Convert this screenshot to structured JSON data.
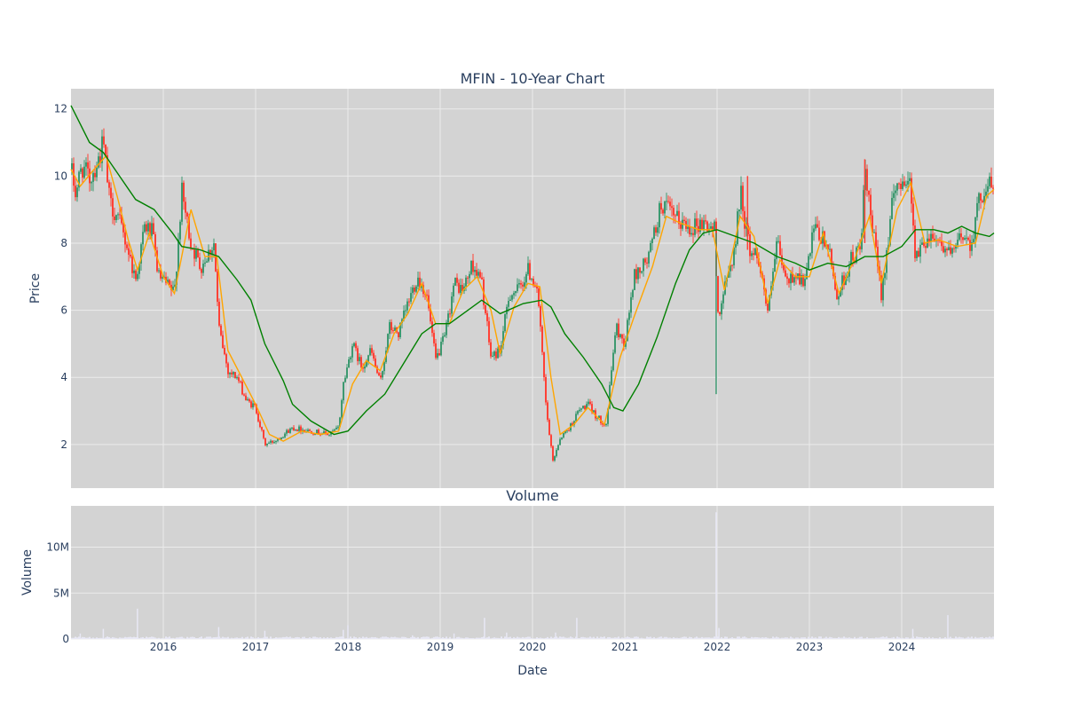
{
  "chart_data": [
    {
      "type": "candlestick",
      "title": "MFIN - 10-Year Chart",
      "ylabel": "Price",
      "ylim": [
        0.7,
        12.6
      ],
      "yticks": [
        2,
        4,
        6,
        8,
        10,
        12
      ],
      "xlim": [
        2015.0,
        2025.0
      ],
      "grid": true,
      "colors": {
        "increasing": "#3d9970",
        "decreasing": "#ff4136",
        "ma_short": "#ffa500",
        "ma_long": "#008000",
        "plot_bg": "#d3d3d3",
        "grid": "#ebebeb"
      },
      "price_path": [
        [
          2015.0,
          10.2
        ],
        [
          2015.05,
          9.5
        ],
        [
          2015.12,
          10.3
        ],
        [
          2015.2,
          9.9
        ],
        [
          2015.3,
          10.5
        ],
        [
          2015.35,
          11.0
        ],
        [
          2015.42,
          9.2
        ],
        [
          2015.5,
          8.8
        ],
        [
          2015.6,
          8.0
        ],
        [
          2015.7,
          6.9
        ],
        [
          2015.8,
          8.5
        ],
        [
          2015.88,
          8.3
        ],
        [
          2015.95,
          7.0
        ],
        [
          2016.05,
          6.7
        ],
        [
          2016.12,
          6.5
        ],
        [
          2016.2,
          9.5
        ],
        [
          2016.3,
          8.0
        ],
        [
          2016.4,
          7.3
        ],
        [
          2016.55,
          8.0
        ],
        [
          2016.6,
          5.5
        ],
        [
          2016.7,
          4.2
        ],
        [
          2016.8,
          4.0
        ],
        [
          2016.9,
          3.3
        ],
        [
          2017.0,
          3.1
        ],
        [
          2017.1,
          2.0
        ],
        [
          2017.2,
          2.1
        ],
        [
          2017.4,
          2.5
        ],
        [
          2017.6,
          2.4
        ],
        [
          2017.8,
          2.3
        ],
        [
          2017.9,
          2.5
        ],
        [
          2017.95,
          3.8
        ],
        [
          2018.05,
          5.0
        ],
        [
          2018.15,
          4.3
        ],
        [
          2018.25,
          4.8
        ],
        [
          2018.35,
          3.8
        ],
        [
          2018.45,
          5.5
        ],
        [
          2018.55,
          5.3
        ],
        [
          2018.65,
          6.2
        ],
        [
          2018.75,
          7.0
        ],
        [
          2018.85,
          6.5
        ],
        [
          2018.95,
          4.5
        ],
        [
          2019.05,
          5.2
        ],
        [
          2019.15,
          6.8
        ],
        [
          2019.25,
          6.6
        ],
        [
          2019.35,
          7.4
        ],
        [
          2019.45,
          6.8
        ],
        [
          2019.55,
          4.6
        ],
        [
          2019.65,
          4.8
        ],
        [
          2019.75,
          6.5
        ],
        [
          2019.85,
          6.6
        ],
        [
          2019.95,
          7.2
        ],
        [
          2020.05,
          6.7
        ],
        [
          2020.15,
          3.0
        ],
        [
          2020.22,
          1.5
        ],
        [
          2020.3,
          2.2
        ],
        [
          2020.4,
          2.5
        ],
        [
          2020.5,
          3.0
        ],
        [
          2020.6,
          3.2
        ],
        [
          2020.7,
          2.8
        ],
        [
          2020.8,
          2.6
        ],
        [
          2020.9,
          5.5
        ],
        [
          2021.0,
          5.0
        ],
        [
          2021.1,
          7.0
        ],
        [
          2021.25,
          7.5
        ],
        [
          2021.4,
          9.2
        ],
        [
          2021.55,
          8.7
        ],
        [
          2021.7,
          8.5
        ],
        [
          2021.85,
          8.6
        ],
        [
          2021.98,
          8.4
        ],
        [
          2022.0,
          5.8
        ],
        [
          2022.1,
          6.8
        ],
        [
          2022.2,
          8.0
        ],
        [
          2022.25,
          9.6
        ],
        [
          2022.35,
          7.8
        ],
        [
          2022.45,
          7.6
        ],
        [
          2022.55,
          5.9
        ],
        [
          2022.65,
          8.0
        ],
        [
          2022.75,
          6.8
        ],
        [
          2022.85,
          7.1
        ],
        [
          2022.95,
          6.8
        ],
        [
          2023.05,
          8.4
        ],
        [
          2023.2,
          7.9
        ],
        [
          2023.3,
          6.4
        ],
        [
          2023.45,
          7.5
        ],
        [
          2023.55,
          7.8
        ],
        [
          2023.6,
          10.0
        ],
        [
          2023.7,
          8.1
        ],
        [
          2023.78,
          6.5
        ],
        [
          2023.9,
          9.2
        ],
        [
          2024.0,
          10.0
        ],
        [
          2024.1,
          9.7
        ],
        [
          2024.15,
          7.5
        ],
        [
          2024.25,
          8.1
        ],
        [
          2024.35,
          8.3
        ],
        [
          2024.45,
          7.9
        ],
        [
          2024.55,
          7.6
        ],
        [
          2024.65,
          8.3
        ],
        [
          2024.75,
          8.0
        ],
        [
          2024.85,
          9.4
        ],
        [
          2024.95,
          9.8
        ],
        [
          2025.0,
          9.5
        ]
      ],
      "ma_short": [
        [
          2015.0,
          10.2
        ],
        [
          2015.1,
          9.7
        ],
        [
          2015.25,
          10.2
        ],
        [
          2015.38,
          10.6
        ],
        [
          2015.5,
          9.4
        ],
        [
          2015.62,
          8.1
        ],
        [
          2015.72,
          7.2
        ],
        [
          2015.85,
          8.3
        ],
        [
          2016.0,
          7.0
        ],
        [
          2016.12,
          6.5
        ],
        [
          2016.3,
          9.0
        ],
        [
          2016.45,
          7.6
        ],
        [
          2016.58,
          7.6
        ],
        [
          2016.7,
          4.8
        ],
        [
          2016.85,
          4.0
        ],
        [
          2017.0,
          3.2
        ],
        [
          2017.15,
          2.3
        ],
        [
          2017.3,
          2.1
        ],
        [
          2017.5,
          2.4
        ],
        [
          2017.7,
          2.3
        ],
        [
          2017.9,
          2.4
        ],
        [
          2018.05,
          3.8
        ],
        [
          2018.2,
          4.5
        ],
        [
          2018.35,
          4.2
        ],
        [
          2018.5,
          5.3
        ],
        [
          2018.65,
          5.9
        ],
        [
          2018.8,
          6.8
        ],
        [
          2018.95,
          5.6
        ],
        [
          2019.1,
          5.6
        ],
        [
          2019.25,
          6.6
        ],
        [
          2019.4,
          7.0
        ],
        [
          2019.55,
          6.0
        ],
        [
          2019.65,
          4.7
        ],
        [
          2019.8,
          6.1
        ],
        [
          2019.95,
          6.8
        ],
        [
          2020.08,
          6.7
        ],
        [
          2020.2,
          4.0
        ],
        [
          2020.3,
          2.3
        ],
        [
          2020.45,
          2.6
        ],
        [
          2020.6,
          3.1
        ],
        [
          2020.78,
          2.6
        ],
        [
          2020.95,
          4.6
        ],
        [
          2021.1,
          5.8
        ],
        [
          2021.3,
          7.3
        ],
        [
          2021.45,
          8.8
        ],
        [
          2021.6,
          8.6
        ],
        [
          2021.8,
          8.4
        ],
        [
          2021.95,
          8.4
        ],
        [
          2022.08,
          6.6
        ],
        [
          2022.25,
          8.8
        ],
        [
          2022.4,
          8.2
        ],
        [
          2022.55,
          6.2
        ],
        [
          2022.68,
          7.5
        ],
        [
          2022.85,
          7.0
        ],
        [
          2023.0,
          7.0
        ],
        [
          2023.15,
          8.3
        ],
        [
          2023.32,
          6.5
        ],
        [
          2023.5,
          7.6
        ],
        [
          2023.65,
          8.8
        ],
        [
          2023.78,
          6.8
        ],
        [
          2023.95,
          9.0
        ],
        [
          2024.1,
          9.8
        ],
        [
          2024.25,
          8.0
        ],
        [
          2024.4,
          8.1
        ],
        [
          2024.6,
          7.9
        ],
        [
          2024.8,
          8.0
        ],
        [
          2024.92,
          9.4
        ],
        [
          2025.0,
          9.6
        ]
      ],
      "ma_long": [
        [
          2015.0,
          12.1
        ],
        [
          2015.2,
          11.0
        ],
        [
          2015.35,
          10.7
        ],
        [
          2015.5,
          10.1
        ],
        [
          2015.7,
          9.3
        ],
        [
          2015.9,
          9.0
        ],
        [
          2016.1,
          8.3
        ],
        [
          2016.2,
          7.9
        ],
        [
          2016.4,
          7.8
        ],
        [
          2016.6,
          7.6
        ],
        [
          2016.8,
          6.9
        ],
        [
          2016.95,
          6.3
        ],
        [
          2017.1,
          5.0
        ],
        [
          2017.3,
          3.9
        ],
        [
          2017.4,
          3.2
        ],
        [
          2017.6,
          2.7
        ],
        [
          2017.85,
          2.3
        ],
        [
          2018.0,
          2.4
        ],
        [
          2018.2,
          3.0
        ],
        [
          2018.4,
          3.5
        ],
        [
          2018.6,
          4.4
        ],
        [
          2018.8,
          5.3
        ],
        [
          2018.95,
          5.6
        ],
        [
          2019.1,
          5.6
        ],
        [
          2019.3,
          6.0
        ],
        [
          2019.45,
          6.3
        ],
        [
          2019.65,
          5.9
        ],
        [
          2019.9,
          6.2
        ],
        [
          2020.1,
          6.3
        ],
        [
          2020.2,
          6.1
        ],
        [
          2020.35,
          5.3
        ],
        [
          2020.55,
          4.6
        ],
        [
          2020.75,
          3.8
        ],
        [
          2020.88,
          3.1
        ],
        [
          2020.98,
          3.0
        ],
        [
          2021.15,
          3.8
        ],
        [
          2021.35,
          5.2
        ],
        [
          2021.55,
          6.8
        ],
        [
          2021.7,
          7.8
        ],
        [
          2021.85,
          8.3
        ],
        [
          2022.0,
          8.4
        ],
        [
          2022.2,
          8.2
        ],
        [
          2022.4,
          8.0
        ],
        [
          2022.65,
          7.6
        ],
        [
          2022.85,
          7.4
        ],
        [
          2023.0,
          7.2
        ],
        [
          2023.2,
          7.4
        ],
        [
          2023.4,
          7.3
        ],
        [
          2023.6,
          7.6
        ],
        [
          2023.8,
          7.6
        ],
        [
          2024.0,
          7.9
        ],
        [
          2024.15,
          8.4
        ],
        [
          2024.35,
          8.4
        ],
        [
          2024.5,
          8.3
        ],
        [
          2024.65,
          8.5
        ],
        [
          2024.8,
          8.3
        ],
        [
          2024.95,
          8.2
        ],
        [
          2025.0,
          8.3
        ]
      ]
    },
    {
      "type": "bar",
      "title": "Volume",
      "xlabel": "Date",
      "ylabel": "Volume",
      "ylim": [
        0,
        14500000
      ],
      "yticks": [
        0,
        5000000,
        10000000
      ],
      "ytick_labels": [
        "0",
        "5M",
        "10M"
      ],
      "xticks": [
        2016,
        2017,
        2018,
        2019,
        2020,
        2021,
        2022,
        2023,
        2024
      ],
      "xtick_labels": [
        "2016",
        "2017",
        "2018",
        "2019",
        "2020",
        "2021",
        "2022",
        "2023",
        "2024"
      ],
      "bar_color": "#e8e8f5",
      "baseline_volume": 150000,
      "spikes": [
        [
          2015.1,
          600000
        ],
        [
          2015.35,
          1100000
        ],
        [
          2015.72,
          3300000
        ],
        [
          2016.6,
          1300000
        ],
        [
          2017.1,
          900000
        ],
        [
          2017.95,
          1000000
        ],
        [
          2018.0,
          1500000
        ],
        [
          2018.7,
          400000
        ],
        [
          2019.15,
          600000
        ],
        [
          2019.48,
          2300000
        ],
        [
          2019.72,
          700000
        ],
        [
          2020.25,
          700000
        ],
        [
          2020.48,
          2300000
        ],
        [
          2021.99,
          13800000
        ],
        [
          2022.02,
          1200000
        ],
        [
          2024.12,
          1100000
        ],
        [
          2024.5,
          2600000
        ]
      ]
    }
  ]
}
